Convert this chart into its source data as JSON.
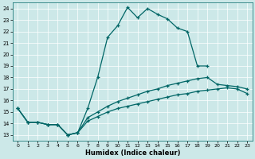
{
  "xlabel": "Humidex (Indice chaleur)",
  "bg_color": "#cce8e8",
  "line_color": "#006666",
  "grid_color": "#ffffff",
  "xlim": [
    -0.5,
    23.5
  ],
  "ylim": [
    12.5,
    24.5
  ],
  "xticks": [
    0,
    1,
    2,
    3,
    4,
    5,
    6,
    7,
    8,
    9,
    10,
    11,
    12,
    13,
    14,
    15,
    16,
    17,
    18,
    19,
    20,
    21,
    22,
    23
  ],
  "yticks": [
    13,
    14,
    15,
    16,
    17,
    18,
    19,
    20,
    21,
    22,
    23,
    24
  ],
  "line1_x": [
    0,
    1,
    2,
    3,
    4,
    5,
    6,
    7,
    8,
    9,
    10,
    11,
    12,
    13,
    14,
    15,
    16,
    17,
    18,
    19
  ],
  "line1_y": [
    15.3,
    14.1,
    14.1,
    13.9,
    13.9,
    13.0,
    13.2,
    15.3,
    18.0,
    21.5,
    22.5,
    24.1,
    23.2,
    24.0,
    23.5,
    23.1,
    22.3,
    22.0,
    19.0,
    19.0
  ],
  "line2_x": [
    0,
    1,
    2,
    3,
    4,
    5,
    6,
    7,
    8,
    9,
    10,
    11,
    12,
    13,
    14,
    15,
    16,
    17,
    18,
    19,
    20,
    21,
    22,
    23
  ],
  "line2_y": [
    15.3,
    14.1,
    14.1,
    13.9,
    13.9,
    13.0,
    13.2,
    14.5,
    15.0,
    15.5,
    15.9,
    16.2,
    16.5,
    16.8,
    17.0,
    17.3,
    17.5,
    17.7,
    17.9,
    18.0,
    17.4,
    17.3,
    17.2,
    17.0
  ],
  "line3_x": [
    0,
    1,
    2,
    3,
    4,
    5,
    6,
    7,
    8,
    9,
    10,
    11,
    12,
    13,
    14,
    15,
    16,
    17,
    18,
    19,
    20,
    21,
    22,
    23
  ],
  "line3_y": [
    15.3,
    14.1,
    14.1,
    13.9,
    13.9,
    13.0,
    13.2,
    14.2,
    14.6,
    15.0,
    15.3,
    15.5,
    15.7,
    15.9,
    16.1,
    16.3,
    16.5,
    16.6,
    16.8,
    16.9,
    17.0,
    17.1,
    17.0,
    16.6
  ]
}
